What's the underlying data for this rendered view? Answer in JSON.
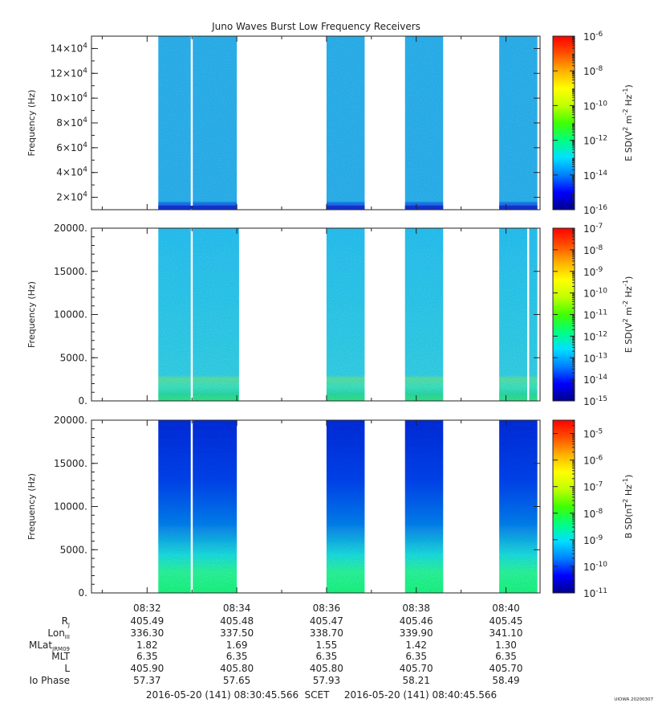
{
  "title": "Juno Waves Burst Low Frequency Receivers",
  "watermark": "UIOWA 20200307",
  "time_axis": {
    "ticks": [
      "08:32",
      "08:34",
      "08:36",
      "08:38",
      "08:40"
    ],
    "start_label": "2016-05-20 (141) 08:30:45.566",
    "scet_label": "SCET",
    "end_label": "2016-05-20 (141) 08:40:45.566"
  },
  "ephemeris": {
    "rows": [
      {
        "label": "R",
        "sub": "J",
        "values": [
          "405.49",
          "405.48",
          "405.47",
          "405.46",
          "405.45"
        ]
      },
      {
        "label": "Lon",
        "sub": "III",
        "values": [
          "336.30",
          "337.50",
          "338.70",
          "339.90",
          "341.10"
        ]
      },
      {
        "label": "MLat",
        "sub": "JRM09",
        "values": [
          "1.82",
          "1.69",
          "1.55",
          "1.42",
          "1.30"
        ]
      },
      {
        "label": "MLT",
        "sub": "",
        "values": [
          "6.35",
          "6.35",
          "6.35",
          "6.35",
          "6.35"
        ]
      },
      {
        "label": "L",
        "sub": "",
        "values": [
          "405.90",
          "405.80",
          "405.80",
          "405.70",
          "405.70"
        ]
      },
      {
        "label": "Io Phase",
        "sub": "",
        "values": [
          "57.37",
          "57.65",
          "57.93",
          "58.21",
          "58.49"
        ]
      }
    ]
  },
  "colors": {
    "colormap": [
      "#00008c",
      "#0000ff",
      "#0080ff",
      "#00e0ff",
      "#00ff80",
      "#40ff00",
      "#c0ff00",
      "#ffff00",
      "#ffb000",
      "#ff5000",
      "#ff0000"
    ]
  },
  "chart_data": [
    {
      "type": "heatmap",
      "panel": "top",
      "ylabel": "Frequency (Hz)",
      "y_ticks": [
        "2×10^4",
        "4×10^4",
        "6×10^4",
        "8×10^4",
        "10×10^4",
        "12×10^4",
        "14×10^4"
      ],
      "ylim": [
        10000,
        150000
      ],
      "colorbar_label": "E SD(V^2 m^-2 Hz^-1)",
      "colorbar_ticks": [
        "10^-6",
        "10^-8",
        "10^-10",
        "10^-12",
        "10^-14",
        "10^-16"
      ],
      "colorbar_range_log10": [
        -16,
        -6
      ],
      "time_range_minutes": [
        30.76,
        40.76
      ],
      "bursts": [
        {
          "start": 32.25,
          "end": 34.0,
          "gap": 33.0
        },
        {
          "start": 36.0,
          "end": 36.85
        },
        {
          "start": 37.75,
          "end": 38.6
        },
        {
          "start": 39.85,
          "end": 40.7
        }
      ],
      "level": "cyan-blue, darker band at lowest frequencies"
    },
    {
      "type": "heatmap",
      "panel": "middle",
      "ylabel": "Frequency (Hz)",
      "y_ticks": [
        "0.",
        "5000.",
        "10000.",
        "15000.",
        "20000."
      ],
      "ylim": [
        0,
        20000
      ],
      "colorbar_label": "E SD(V^2 m^-2 Hz^-1)",
      "colorbar_ticks": [
        "10^-7",
        "10^-8",
        "10^-9",
        "10^-10",
        "10^-11",
        "10^-12",
        "10^-13",
        "10^-14",
        "10^-15"
      ],
      "colorbar_range_log10": [
        -15,
        -7
      ],
      "time_range_minutes": [
        30.76,
        40.76
      ],
      "bursts": [
        {
          "start": 32.25,
          "end": 34.05,
          "gap": 33.0
        },
        {
          "start": 36.0,
          "end": 36.85
        },
        {
          "start": 37.75,
          "end": 38.6
        },
        {
          "start": 39.85,
          "end": 40.7,
          "gap": 40.5
        }
      ],
      "level": "cyan, green emission below ~3000 Hz"
    },
    {
      "type": "heatmap",
      "panel": "bottom",
      "ylabel": "Frequency (Hz)",
      "y_ticks": [
        "0.",
        "5000.",
        "10000.",
        "15000.",
        "20000."
      ],
      "ylim": [
        0,
        20000
      ],
      "colorbar_label": "B SD(nT^2 Hz^-1)",
      "colorbar_ticks": [
        "10^-5",
        "10^-6",
        "10^-7",
        "10^-8",
        "10^-9",
        "10^-10",
        "10^-11"
      ],
      "colorbar_range_log10": [
        -11,
        -4.5
      ],
      "time_range_minutes": [
        30.76,
        40.76
      ],
      "bursts": [
        {
          "start": 32.25,
          "end": 34.0,
          "gap": 33.0
        },
        {
          "start": 36.0,
          "end": 36.85
        },
        {
          "start": 37.75,
          "end": 38.6
        },
        {
          "start": 39.85,
          "end": 40.7
        }
      ],
      "level": "blue at high frequency grading to green below ~3000 Hz"
    }
  ]
}
